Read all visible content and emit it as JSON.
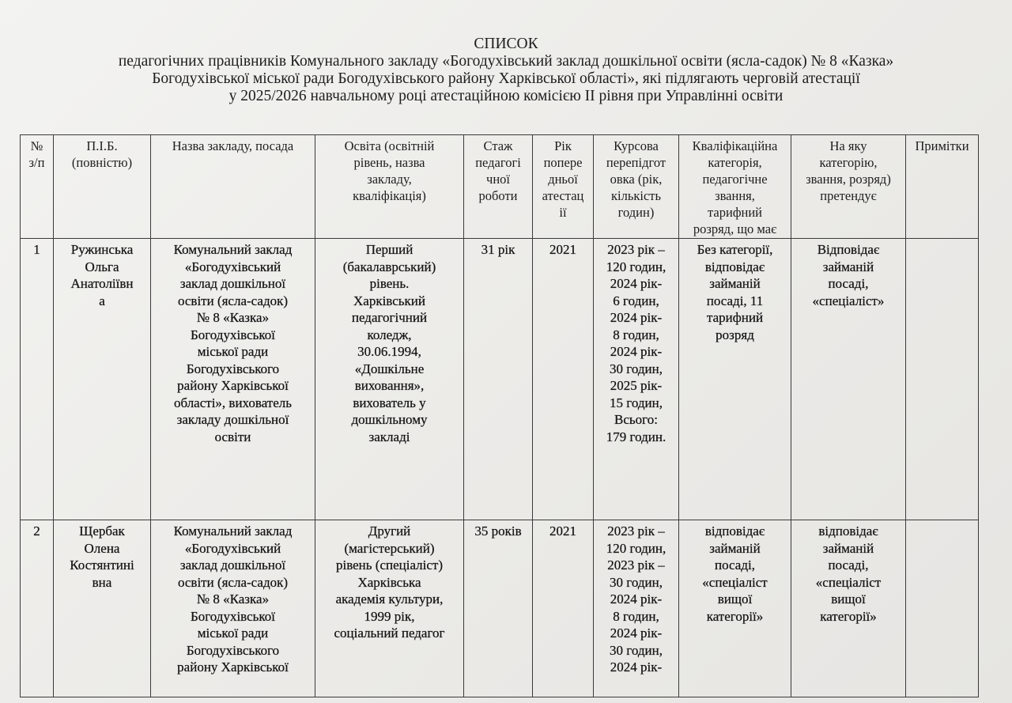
{
  "document": {
    "title_lines": [
      "СПИСОК",
      "педагогічних працівників Комунального закладу «Богодухівський заклад дошкільної освіти (ясла-садок) № 8 «Казка»",
      "Богодухівської міської ради Богодухівського району Харківської області», які підлягають черговій атестації",
      "у 2025/2026 навчальному році атестаційною комісією ІІ рівня при Управлінні освіти"
    ]
  },
  "table": {
    "headers": [
      "№\nз/п",
      "П.І.Б.\n(повністю)",
      "Назва закладу, посада",
      "Освіта (освітній\nрівень, назва\nзакладу,\nкваліфікація)",
      "Стаж\nпедагогі\nчної\nроботи",
      "Рік\nпопере\nдньої\nатестац\nії",
      "Курсова\nперепідгот\nовка (рік,\nкількість\nгодин)",
      "Кваліфікаційна\nкатегорія,\nпедагогічне\nзвання,\nтарифний\nрозряд, що має",
      "На яку\nкатегорію,\nзвання, розряд)\nпретендує",
      "Примітки"
    ],
    "rows": [
      {
        "num": "1",
        "name": "Ружинська\nОльга\nАнатоліївн\nа",
        "institution": "Комунальний заклад\n«Богодухівський\nзаклад дошкільної\nосвіти (ясла-садок)\n№ 8 «Казка»\nБогодухівської\nміської ради\nБогодухівського\nрайону Харківської\nобласті», вихователь\nзакладу дошкільної\nосвіти",
        "education": "Перший\n(бакалаврський)\nрівень.\nХарківський\nпедагогічний\nколедж,\n30.06.1994,\n«Дошкільне\nвиховання»,\nвихователь у\nдошкільному\nзакладі",
        "experience": "31 рік",
        "prev_year": "2021",
        "courses": "2023 рік –\n120 годин,\n2024 рік-\n6 годин,\n2024 рік-\n8 годин,\n2024 рік-\n30 годин,\n2025 рік-\n15 годин,\nВсього:\n179 годин.",
        "category": "Без категорії,\nвідповідає\nзайманій\nпосаді, 11\nтарифний\nрозряд",
        "target": "Відповідає\nзайманій\nпосаді,\n«спеціаліст»",
        "notes": ""
      },
      {
        "num": "2",
        "name": "Щербак\nОлена\nКостянтині\nвна",
        "institution": "Комунальний заклад\n«Богодухівський\nзаклад дошкільної\nосвіти (ясла-садок)\n№ 8 «Казка»\nБогодухівської\nміської ради\nБогодухівського\nрайону Харківської",
        "education": "Другий\n(магістерський)\nрівень (спеціаліст)\nХарківська\nакадемія культури,\n1999 рік,\nсоціальний педагог",
        "experience": "35 років",
        "prev_year": "2021",
        "courses": "2023 рік –\n120 годин,\n2023 рік –\n30 годин,\n2024 рік-\n8 годин,\n2024 рік-\n30 годин,\n2024 рік-",
        "category": "відповідає\nзайманій\nпосаді,\n«спеціаліст\nвищої\nкатегорії»",
        "target": "відповідає\nзайманій\nпосаді,\n«спеціаліст\nвищої\nкатегорії»",
        "notes": ""
      }
    ]
  }
}
